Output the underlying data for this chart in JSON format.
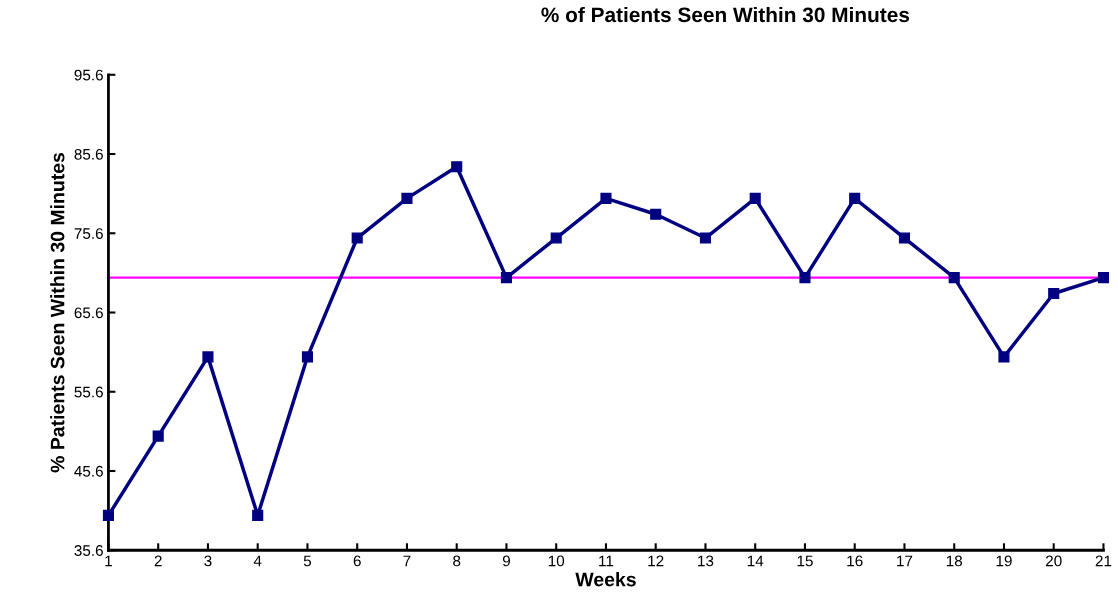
{
  "chart_data": {
    "type": "line",
    "title": "% of Patients Seen Within 30 Minutes",
    "xlabel": "Weeks",
    "ylabel": "% Patients Seen Within 30 Minutes",
    "x": [
      1,
      2,
      3,
      4,
      5,
      6,
      7,
      8,
      9,
      10,
      11,
      12,
      13,
      14,
      15,
      16,
      17,
      18,
      19,
      20,
      21
    ],
    "series": [
      {
        "color": "#000080",
        "values": [
          40,
          50,
          60,
          40,
          60,
          75,
          80,
          84,
          70,
          75,
          80,
          78,
          75,
          80,
          70,
          80,
          75,
          70,
          60,
          68,
          70
        ]
      }
    ],
    "xlim": [
      1,
      21
    ],
    "xticks": [
      1,
      2,
      3,
      4,
      5,
      6,
      7,
      8,
      9,
      10,
      11,
      12,
      13,
      14,
      15,
      16,
      17,
      18,
      19,
      20,
      21
    ],
    "ylim": [
      35.6,
      95.6
    ],
    "yticks": [
      35.6,
      45.6,
      55.6,
      65.6,
      75.6,
      85.6,
      95.6
    ],
    "ref_lines": [
      {
        "axis": "y",
        "value": 70,
        "color": "#ff00ff"
      }
    ],
    "grid": false,
    "legend": false,
    "marker": "square",
    "line_style": "solid"
  }
}
